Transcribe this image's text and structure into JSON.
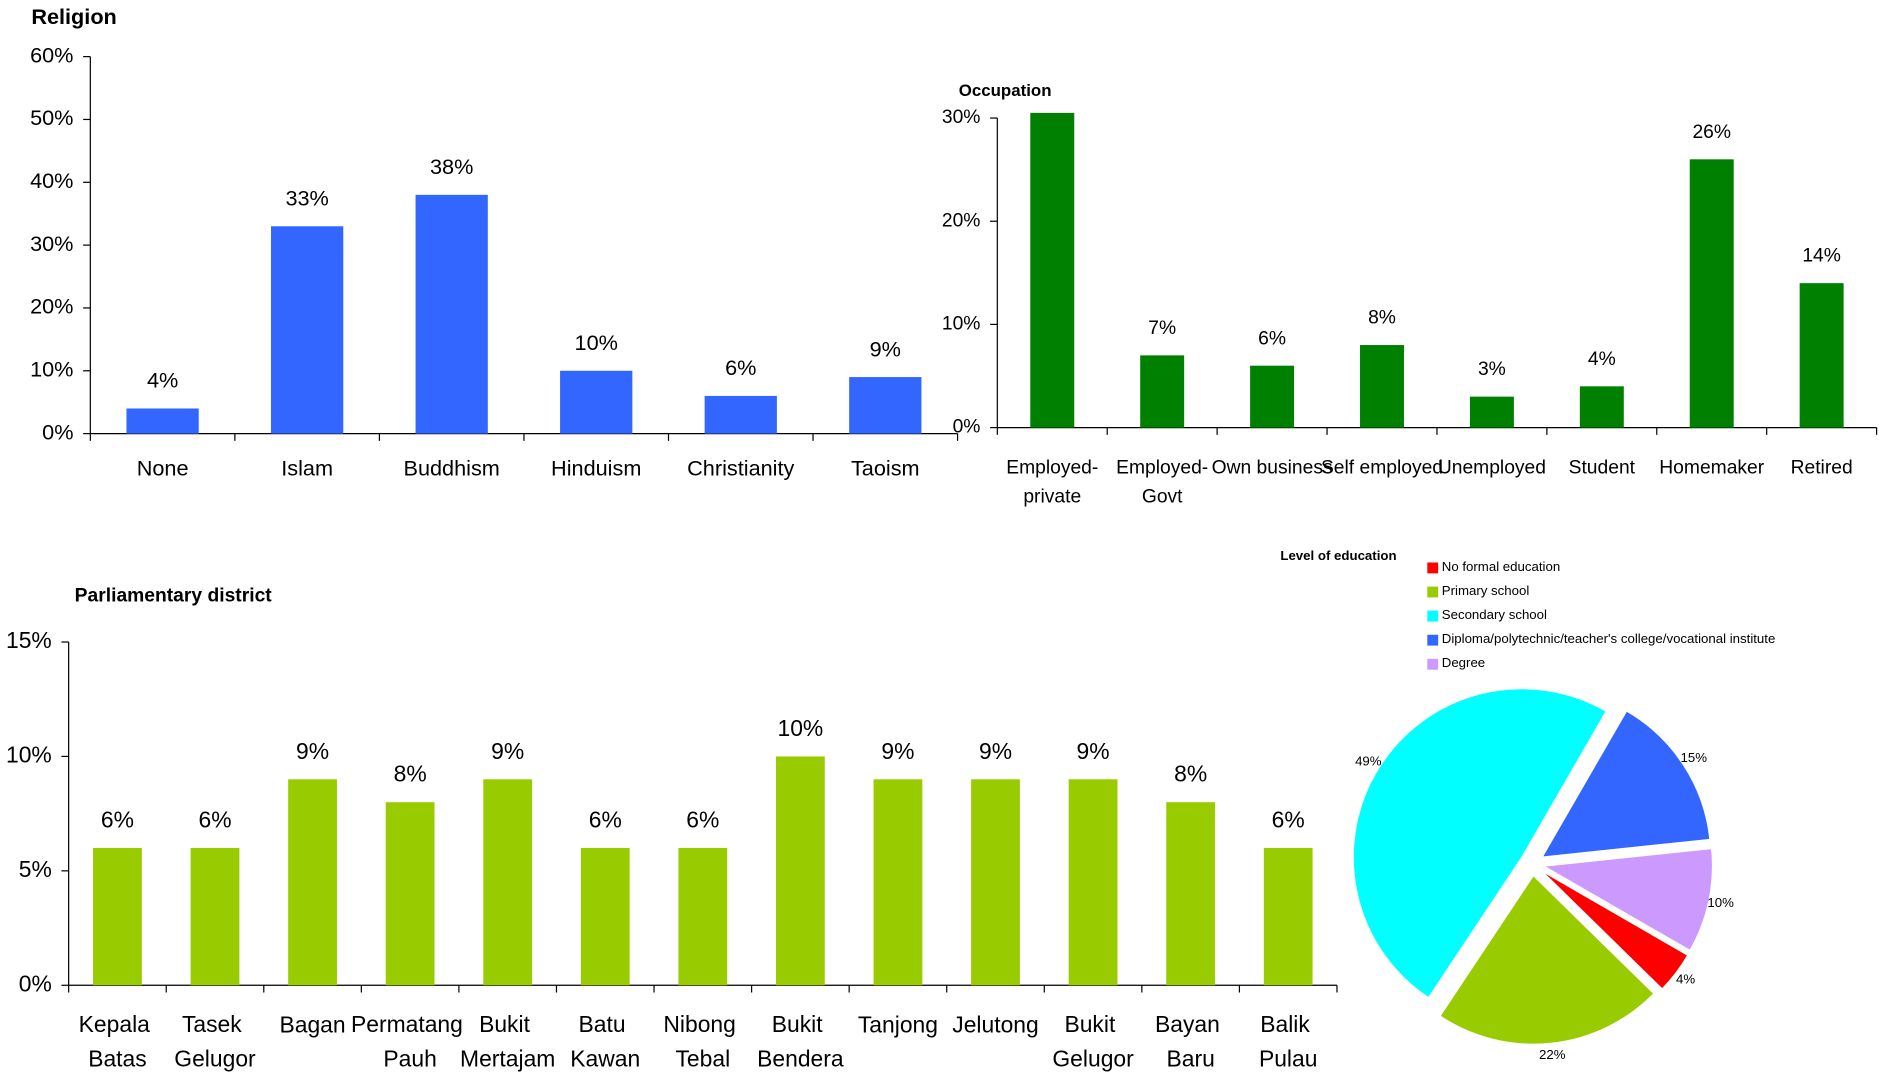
{
  "chart_data": [
    {
      "type": "bar",
      "title": "Religion",
      "categories": [
        "None",
        "Islam",
        "Buddhism",
        "Hinduism",
        "Christianity",
        "Taoism"
      ],
      "values": [
        4,
        33,
        38,
        10,
        6,
        9
      ],
      "value_labels": [
        "4%",
        "33%",
        "38%",
        "10%",
        "6%",
        "9%"
      ],
      "color": "#3366ff",
      "ylim": [
        0,
        60
      ],
      "yticks": [
        {
          "value": 0,
          "label": "0%"
        },
        {
          "value": 10,
          "label": "10%"
        },
        {
          "value": 20,
          "label": "20%"
        },
        {
          "value": 30,
          "label": "30%"
        },
        {
          "value": 40,
          "label": "40%"
        },
        {
          "value": 50,
          "label": "50%"
        },
        {
          "value": 60,
          "label": "60%"
        }
      ]
    },
    {
      "type": "bar",
      "title": "Occupation",
      "categories": [
        "Employed-private",
        "Employed-Govt",
        "Own business",
        "Self employed",
        "Unemployed",
        "Student",
        "Homemaker",
        "Retired"
      ],
      "values": [
        30.5,
        7,
        6,
        8,
        3,
        4,
        26,
        14
      ],
      "value_labels": [
        null,
        "7%",
        "6%",
        "8%",
        "3%",
        "4%",
        "26%",
        "14%"
      ],
      "color": "#008000",
      "ylim": [
        0,
        30
      ],
      "yticks": [
        {
          "value": 0,
          "label": "0%"
        },
        {
          "value": 10,
          "label": "10%"
        },
        {
          "value": 20,
          "label": "20%"
        },
        {
          "value": 30,
          "label": "30%"
        }
      ]
    },
    {
      "type": "bar",
      "title": "Parliamentary district",
      "categories": [
        "Kepala Batas",
        "Tasek Gelugor",
        "Bagan",
        "Permatang Pauh",
        "Bukit Mertajam",
        "Batu Kawan",
        "Nibong Tebal",
        "Bukit Bendera",
        "Tanjong",
        "Jelutong",
        "Bukit Gelugor",
        "Bayan Baru",
        "Balik Pulau"
      ],
      "values": [
        6,
        6,
        9,
        8,
        9,
        6,
        6,
        10,
        9,
        9,
        9,
        8,
        6
      ],
      "value_labels": [
        "6%",
        "6%",
        "9%",
        "8%",
        "9%",
        "6%",
        "6%",
        "10%",
        "9%",
        "9%",
        "9%",
        "8%",
        "6%"
      ],
      "color": "#99cc00",
      "wrap_labels": true,
      "ylim": [
        0,
        15
      ],
      "yticks": [
        {
          "value": 0,
          "label": "0%"
        },
        {
          "value": 5,
          "label": "5%"
        },
        {
          "value": 10,
          "label": "10%"
        },
        {
          "value": 15,
          "label": "15%"
        }
      ]
    },
    {
      "type": "pie",
      "title": "Level of education",
      "categories": [
        "No formal education",
        "Primary school",
        "Secondary school",
        "Diploma/polytechnic/teacher's college/vocational institute",
        "Degree"
      ],
      "values": [
        4,
        22,
        49,
        15,
        10
      ],
      "value_labels": [
        "4%",
        "22%",
        "49%",
        "15%",
        "10%"
      ],
      "colors": [
        "#ff0000",
        "#99cc00",
        "#00ffff",
        "#3366ff",
        "#cc99ff"
      ]
    }
  ]
}
